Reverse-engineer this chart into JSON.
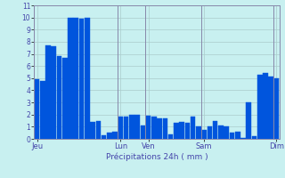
{
  "values": [
    4.9,
    4.8,
    7.7,
    7.6,
    6.8,
    6.7,
    10.0,
    10.0,
    9.9,
    10.0,
    1.4,
    1.5,
    0.3,
    0.5,
    0.6,
    1.8,
    1.8,
    2.0,
    2.0,
    1.1,
    1.9,
    1.8,
    1.7,
    1.7,
    0.4,
    1.3,
    1.4,
    1.3,
    1.8,
    1.0,
    0.7,
    1.0,
    1.5,
    1.1,
    1.0,
    0.5,
    0.6,
    0.1,
    3.0,
    0.2,
    5.3,
    5.4,
    5.1,
    5.0
  ],
  "bar_color": "#0055dd",
  "bar_edge_color": "#0055dd",
  "background_color": "#c8f0f0",
  "grid_color": "#aacccc",
  "text_color": "#4444aa",
  "xlabel": "Précipitations 24h ( mm )",
  "ylim": [
    0,
    11
  ],
  "yticks": [
    0,
    1,
    2,
    3,
    4,
    5,
    6,
    7,
    8,
    9,
    10,
    11
  ],
  "day_labels": [
    "Jeu",
    "Lun",
    "Ven",
    "Sam",
    "Dim"
  ],
  "day_positions": [
    0,
    15,
    20,
    30,
    43
  ],
  "vline_positions": [
    0,
    15,
    20,
    30,
    43
  ]
}
